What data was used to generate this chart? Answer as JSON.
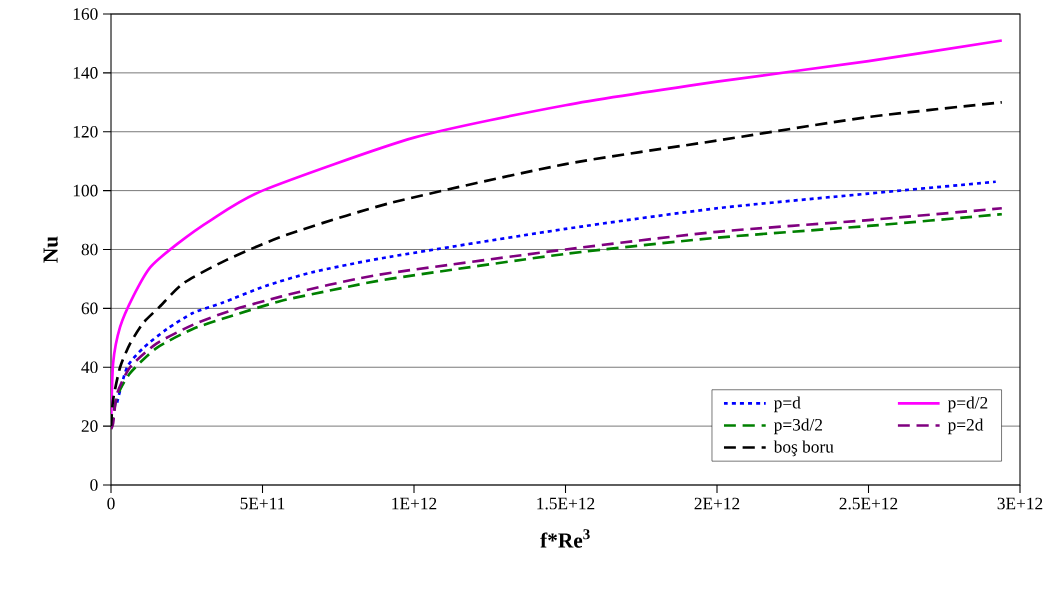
{
  "chart_data": {
    "type": "line",
    "xlabel": "f*Re$^{3}$",
    "ylabel": "Nu",
    "xlim": [
      0,
      3000000000000.0
    ],
    "ylim": [
      0,
      160
    ],
    "xticks": [
      {
        "value": 0,
        "label": "0"
      },
      {
        "value": 500000000000.0,
        "label": "5E+11"
      },
      {
        "value": 1000000000000.0,
        "label": "1E+12"
      },
      {
        "value": 1500000000000.0,
        "label": "1.5E+12"
      },
      {
        "value": 2000000000000.0,
        "label": "2E+12"
      },
      {
        "value": 2500000000000.0,
        "label": "2.5E+12"
      },
      {
        "value": 3000000000000.0,
        "label": "3E+12"
      }
    ],
    "yticks": [
      0,
      20,
      40,
      60,
      80,
      100,
      120,
      140,
      160
    ],
    "grid": "y",
    "legend": "bottom right",
    "marker": "none",
    "series": [
      {
        "name": "p=d",
        "color": "#0000ff",
        "line_style": "dotted",
        "x": [
          20000000000.0,
          53000000000.0,
          106000000000.0,
          185000000000.0,
          270000000000.0,
          370000000000.0,
          510000000000.0,
          670000000000.0,
          920000000000.0,
          1500000000000.0,
          2000000000000.0,
          2500000000000.0,
          2920000000000.0
        ],
        "values": [
          28,
          40,
          46.5,
          53,
          58.4,
          62,
          67.6,
          72.4,
          77.5,
          87,
          94,
          99,
          103
        ]
      },
      {
        "name": "p=d/2",
        "color": "#ff00ff",
        "line_style": "solid",
        "x": [
          0,
          7000000000.0,
          30000000000.0,
          73000000000.0,
          130000000000.0,
          220000000000.0,
          330000000000.0,
          500000000000.0,
          1000000000000.0,
          1500000000000.0,
          2000000000000.0,
          2500000000000.0,
          2940000000000.0
        ],
        "values": [
          20,
          41.4,
          53.7,
          64,
          74,
          82,
          90,
          100,
          118,
          129,
          137,
          144,
          151
        ]
      },
      {
        "name": "p=3d/2",
        "color": "#008000",
        "line_style": "dashed",
        "x": [
          0,
          20000000000.0,
          63000000000.0,
          150000000000.0,
          270000000000.0,
          400000000000.0,
          560000000000.0,
          720000000000.0,
          920000000000.0,
          1500000000000.0,
          2000000000000.0,
          2500000000000.0,
          2940000000000.0
        ],
        "values": [
          19,
          30,
          38,
          46.5,
          53,
          57.5,
          62.5,
          66,
          70,
          78.5,
          84,
          88,
          92
        ]
      },
      {
        "name": "p=2d",
        "color": "#800080",
        "line_style": "dashed",
        "x": [
          0,
          7000000000.0,
          20000000000.0,
          63000000000.0,
          150000000000.0,
          270000000000.0,
          400000000000.0,
          560000000000.0,
          720000000000.0,
          920000000000.0,
          1500000000000.0,
          2000000000000.0,
          2500000000000.0,
          2940000000000.0
        ],
        "values": [
          19,
          21,
          31,
          40,
          48,
          54.4,
          59.4,
          64,
          68,
          72,
          80,
          86,
          90,
          94
        ]
      },
      {
        "name": "boş boru",
        "color": "#000000",
        "line_style": "dashed",
        "x": [
          0,
          7000000000.0,
          30000000000.0,
          63000000000.0,
          106000000000.0,
          160000000000.0,
          240000000000.0,
          380000000000.0,
          580000000000.0,
          930000000000.0,
          1500000000000.0,
          2000000000000.0,
          2500000000000.0,
          2940000000000.0
        ],
        "values": [
          20,
          29,
          40,
          48,
          55,
          60.5,
          68.6,
          76.4,
          85,
          96,
          109,
          117,
          125,
          130
        ]
      }
    ]
  }
}
